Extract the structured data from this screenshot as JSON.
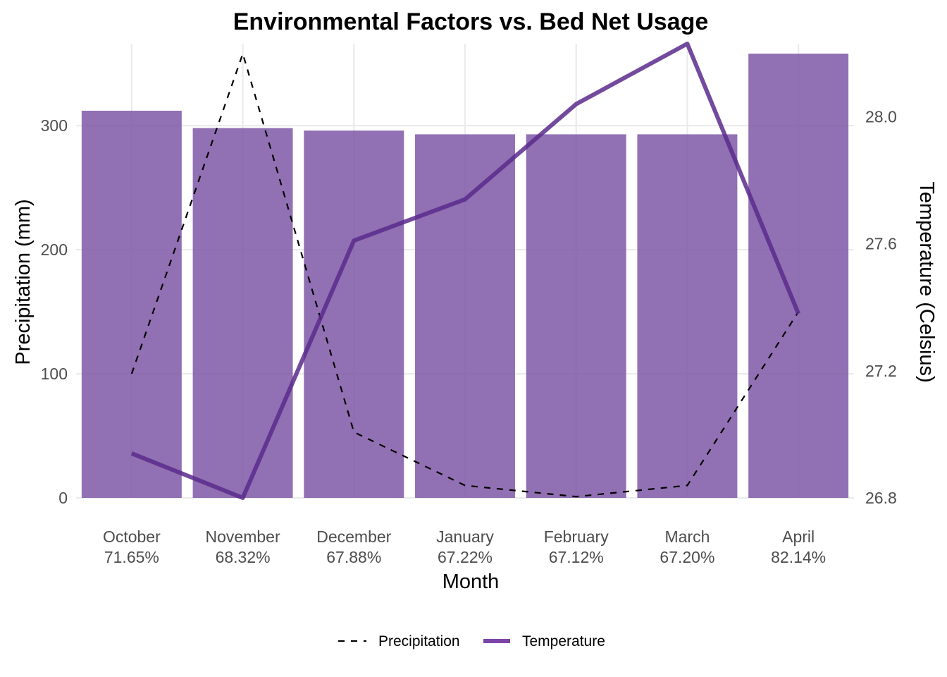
{
  "chart_data": {
    "type": "bar",
    "title": "Environmental Factors vs. Bed Net Usage",
    "xlabel": "Month",
    "ylabel": "Precipitation (mm)",
    "y2label": "Temperature (Celsius)",
    "categories": [
      "October",
      "November",
      "December",
      "January",
      "February",
      "March",
      "April"
    ],
    "category_sublabels": [
      "71.65%",
      "68.32%",
      "67.88%",
      "67.22%",
      "67.12%",
      "67.20%",
      "82.14%"
    ],
    "bed_net_usage_percent": [
      71.65,
      68.32,
      67.88,
      67.22,
      67.12,
      67.2,
      82.14
    ],
    "ylim": [
      0,
      366
    ],
    "yticks": [
      0,
      100,
      200,
      300
    ],
    "y2lim": [
      26.8,
      28.23
    ],
    "y2ticks": [
      "26.8",
      "27.2",
      "27.6",
      "28.0"
    ],
    "grid": true,
    "legend_position": "bottom",
    "series": [
      {
        "name": "Precipitation",
        "style": "dashed",
        "color": "#000000",
        "axis": "left",
        "values": [
          100,
          358,
          53,
          10,
          1,
          10,
          150
        ]
      },
      {
        "name": "Temperature",
        "style": "solid",
        "color": "#5b2a8c",
        "axis": "right",
        "values": [
          26.94,
          26.8,
          27.61,
          27.74,
          28.04,
          28.23,
          27.38
        ]
      }
    ],
    "bar_color": "#7e57a6"
  }
}
